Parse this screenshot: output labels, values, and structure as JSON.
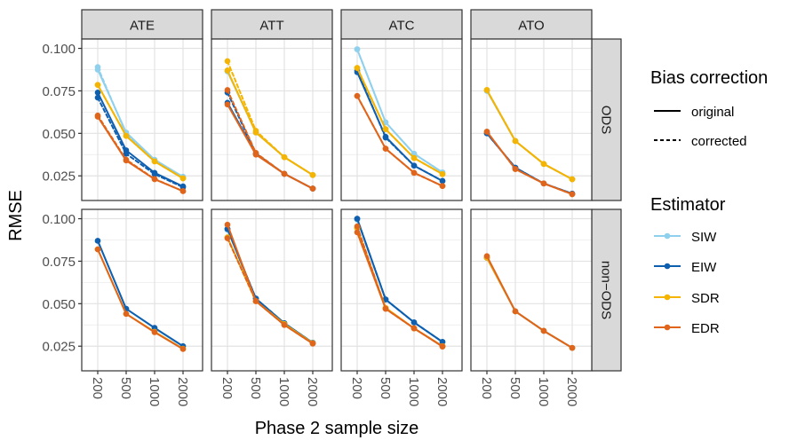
{
  "chart_data": {
    "type": "line",
    "xlabel": "Phase 2 sample size",
    "ylabel": "RMSE",
    "x_categories": [
      "200",
      "500",
      "1000",
      "2000"
    ],
    "y_ticks": [
      "0.025",
      "0.050",
      "0.075",
      "0.100"
    ],
    "y_tick_values": [
      0.025,
      0.05,
      0.075,
      0.1
    ],
    "ylim": [
      0.0105,
      0.1055
    ],
    "columns": [
      "ATE",
      "ATT",
      "ATC",
      "ATO"
    ],
    "rows": [
      "ODS",
      "non−ODS"
    ],
    "legend": {
      "bias_title": "Bias correction",
      "bias_items": [
        {
          "label": "original",
          "dash": "solid"
        },
        {
          "label": "corrected",
          "dash": "dashed"
        }
      ],
      "estimator_title": "Estimator",
      "estimator_items": [
        {
          "label": "SIW",
          "color": "#8fd0ee"
        },
        {
          "label": "EIW",
          "color": "#0f5fb0"
        },
        {
          "label": "SDR",
          "color": "#f5b400"
        },
        {
          "label": "EDR",
          "color": "#e0651b"
        }
      ]
    },
    "panels": [
      {
        "row": 0,
        "col": 0,
        "series": [
          {
            "estimator": "SIW",
            "bias": "original",
            "values": [
              0.0875,
              0.0505,
              0.0345,
              0.0245
            ]
          },
          {
            "estimator": "SIW",
            "bias": "corrected",
            "values": [
              0.089,
              0.0495,
              0.034,
              0.024
            ]
          },
          {
            "estimator": "EIW",
            "bias": "original",
            "values": [
              0.074,
              0.04,
              0.0268,
              0.0188
            ]
          },
          {
            "estimator": "EIW",
            "bias": "corrected",
            "values": [
              0.071,
              0.038,
              0.026,
              0.0183
            ]
          },
          {
            "estimator": "SDR",
            "bias": "original",
            "values": [
              0.0785,
              0.0485,
              0.0335,
              0.0235
            ]
          },
          {
            "estimator": "SDR",
            "bias": "corrected",
            "values": [
              0.0785,
              0.0485,
              0.0335,
              0.0235
            ]
          },
          {
            "estimator": "EDR",
            "bias": "original",
            "values": [
              0.0598,
              0.034,
              0.023,
              0.016
            ]
          },
          {
            "estimator": "EDR",
            "bias": "corrected",
            "values": [
              0.0605,
              0.0345,
              0.0232,
              0.016
            ]
          }
        ]
      },
      {
        "row": 0,
        "col": 1,
        "series": [
          {
            "estimator": "SIW",
            "bias": "original",
            "values": [
              0.0865,
              0.0505,
              0.036,
              0.0255
            ]
          },
          {
            "estimator": "SIW",
            "bias": "corrected",
            "values": [
              0.0865,
              0.0505,
              0.036,
              0.0255
            ]
          },
          {
            "estimator": "EIW",
            "bias": "original",
            "values": [
              0.068,
              0.038,
              0.0262,
              0.0175
            ]
          },
          {
            "estimator": "EIW",
            "bias": "corrected",
            "values": [
              0.074,
              0.038,
              0.0262,
              0.0175
            ]
          },
          {
            "estimator": "SDR",
            "bias": "original",
            "values": [
              0.087,
              0.0505,
              0.036,
              0.0255
            ]
          },
          {
            "estimator": "SDR",
            "bias": "corrected",
            "values": [
              0.0925,
              0.0515,
              0.036,
              0.0255
            ]
          },
          {
            "estimator": "EDR",
            "bias": "original",
            "values": [
              0.067,
              0.0375,
              0.0262,
              0.0175
            ]
          },
          {
            "estimator": "EDR",
            "bias": "corrected",
            "values": [
              0.0755,
              0.0385,
              0.0262,
              0.0175
            ]
          }
        ]
      },
      {
        "row": 0,
        "col": 2,
        "series": [
          {
            "estimator": "SIW",
            "bias": "original",
            "values": [
              0.0995,
              0.0565,
              0.038,
              0.027
            ]
          },
          {
            "estimator": "SIW",
            "bias": "corrected",
            "values": [
              0.0995,
              0.0565,
              0.038,
              0.027
            ]
          },
          {
            "estimator": "EIW",
            "bias": "original",
            "values": [
              0.086,
              0.048,
              0.031,
              0.022
            ]
          },
          {
            "estimator": "EIW",
            "bias": "corrected",
            "values": [
              0.087,
              0.0475,
              0.031,
              0.022
            ]
          },
          {
            "estimator": "SDR",
            "bias": "original",
            "values": [
              0.0885,
              0.0525,
              0.0355,
              0.026
            ]
          },
          {
            "estimator": "SDR",
            "bias": "corrected",
            "values": [
              0.0885,
              0.0525,
              0.0355,
              0.026
            ]
          },
          {
            "estimator": "EDR",
            "bias": "original",
            "values": [
              0.072,
              0.041,
              0.0268,
              0.019
            ]
          },
          {
            "estimator": "EDR",
            "bias": "corrected",
            "values": [
              0.072,
              0.041,
              0.0268,
              0.019
            ]
          }
        ]
      },
      {
        "row": 0,
        "col": 3,
        "series": [
          {
            "estimator": "SIW",
            "bias": "original",
            "values": [
              0.075,
              0.0455,
              0.032,
              0.023
            ]
          },
          {
            "estimator": "SIW",
            "bias": "corrected",
            "values": [
              0.075,
              0.0455,
              0.032,
              0.023
            ]
          },
          {
            "estimator": "EIW",
            "bias": "original",
            "values": [
              0.05,
              0.0298,
              0.0205,
              0.0145
            ]
          },
          {
            "estimator": "EIW",
            "bias": "corrected",
            "values": [
              0.05,
              0.0298,
              0.0205,
              0.0145
            ]
          },
          {
            "estimator": "SDR",
            "bias": "original",
            "values": [
              0.0755,
              0.0455,
              0.032,
              0.023
            ]
          },
          {
            "estimator": "SDR",
            "bias": "corrected",
            "values": [
              0.0755,
              0.0455,
              0.032,
              0.023
            ]
          },
          {
            "estimator": "EDR",
            "bias": "original",
            "values": [
              0.051,
              0.029,
              0.0205,
              0.0142
            ]
          },
          {
            "estimator": "EDR",
            "bias": "corrected",
            "values": [
              0.051,
              0.029,
              0.0205,
              0.0142
            ]
          }
        ]
      },
      {
        "row": 1,
        "col": 0,
        "series": [
          {
            "estimator": "SIW",
            "bias": "original",
            "values": [
              0.087,
              0.047,
              0.0355,
              0.0248
            ]
          },
          {
            "estimator": "EIW",
            "bias": "original",
            "values": [
              0.087,
              0.047,
              0.0358,
              0.025
            ]
          },
          {
            "estimator": "SDR",
            "bias": "original",
            "values": [
              0.082,
              0.044,
              0.0335,
              0.0235
            ]
          },
          {
            "estimator": "EDR",
            "bias": "original",
            "values": [
              0.082,
              0.044,
              0.0332,
              0.0233
            ]
          }
        ]
      },
      {
        "row": 1,
        "col": 1,
        "series": [
          {
            "estimator": "SIW",
            "bias": "original",
            "values": [
              0.0935,
              0.053,
              0.0385,
              0.027
            ]
          },
          {
            "estimator": "SIW",
            "bias": "corrected",
            "values": [
              0.0935,
              0.053,
              0.0385,
              0.027
            ]
          },
          {
            "estimator": "EIW",
            "bias": "original",
            "values": [
              0.094,
              0.053,
              0.0385,
              0.027
            ]
          },
          {
            "estimator": "EIW",
            "bias": "corrected",
            "values": [
              0.094,
              0.053,
              0.0385,
              0.027
            ]
          },
          {
            "estimator": "SDR",
            "bias": "original",
            "values": [
              0.089,
              0.0515,
              0.038,
              0.0268
            ]
          },
          {
            "estimator": "SDR",
            "bias": "corrected",
            "values": [
              0.089,
              0.0515,
              0.038,
              0.0268
            ]
          },
          {
            "estimator": "EDR",
            "bias": "original",
            "values": [
              0.0965,
              0.0515,
              0.0375,
              0.0265
            ]
          },
          {
            "estimator": "EDR",
            "bias": "corrected",
            "values": [
              0.0885,
              0.0515,
              0.0375,
              0.0265
            ]
          }
        ]
      },
      {
        "row": 1,
        "col": 2,
        "series": [
          {
            "estimator": "SIW",
            "bias": "original",
            "values": [
              0.0995,
              0.0525,
              0.039,
              0.0275
            ]
          },
          {
            "estimator": "SIW",
            "bias": "corrected",
            "values": [
              0.0995,
              0.0525,
              0.039,
              0.0275
            ]
          },
          {
            "estimator": "EIW",
            "bias": "original",
            "values": [
              0.1,
              0.0525,
              0.039,
              0.0275
            ]
          },
          {
            "estimator": "EIW",
            "bias": "corrected",
            "values": [
              0.1,
              0.0525,
              0.039,
              0.0275
            ]
          },
          {
            "estimator": "SDR",
            "bias": "original",
            "values": [
              0.0945,
              0.0475,
              0.0355,
              0.025
            ]
          },
          {
            "estimator": "SDR",
            "bias": "corrected",
            "values": [
              0.0945,
              0.0475,
              0.0355,
              0.025
            ]
          },
          {
            "estimator": "EDR",
            "bias": "original",
            "values": [
              0.092,
              0.047,
              0.0355,
              0.0248
            ]
          },
          {
            "estimator": "EDR",
            "bias": "corrected",
            "values": [
              0.0955,
              0.047,
              0.0355,
              0.0248
            ]
          }
        ]
      },
      {
        "row": 1,
        "col": 3,
        "series": [
          {
            "estimator": "SIW",
            "bias": "original",
            "values": [
              0.077,
              0.0455,
              0.034,
              0.024
            ]
          },
          {
            "estimator": "EIW",
            "bias": "original",
            "values": [
              0.077,
              0.0455,
              0.034,
              0.024
            ]
          },
          {
            "estimator": "SDR",
            "bias": "original",
            "values": [
              0.077,
              0.0455,
              0.034,
              0.024
            ]
          },
          {
            "estimator": "EDR",
            "bias": "original",
            "values": [
              0.078,
              0.0455,
              0.034,
              0.024
            ]
          }
        ]
      }
    ]
  }
}
